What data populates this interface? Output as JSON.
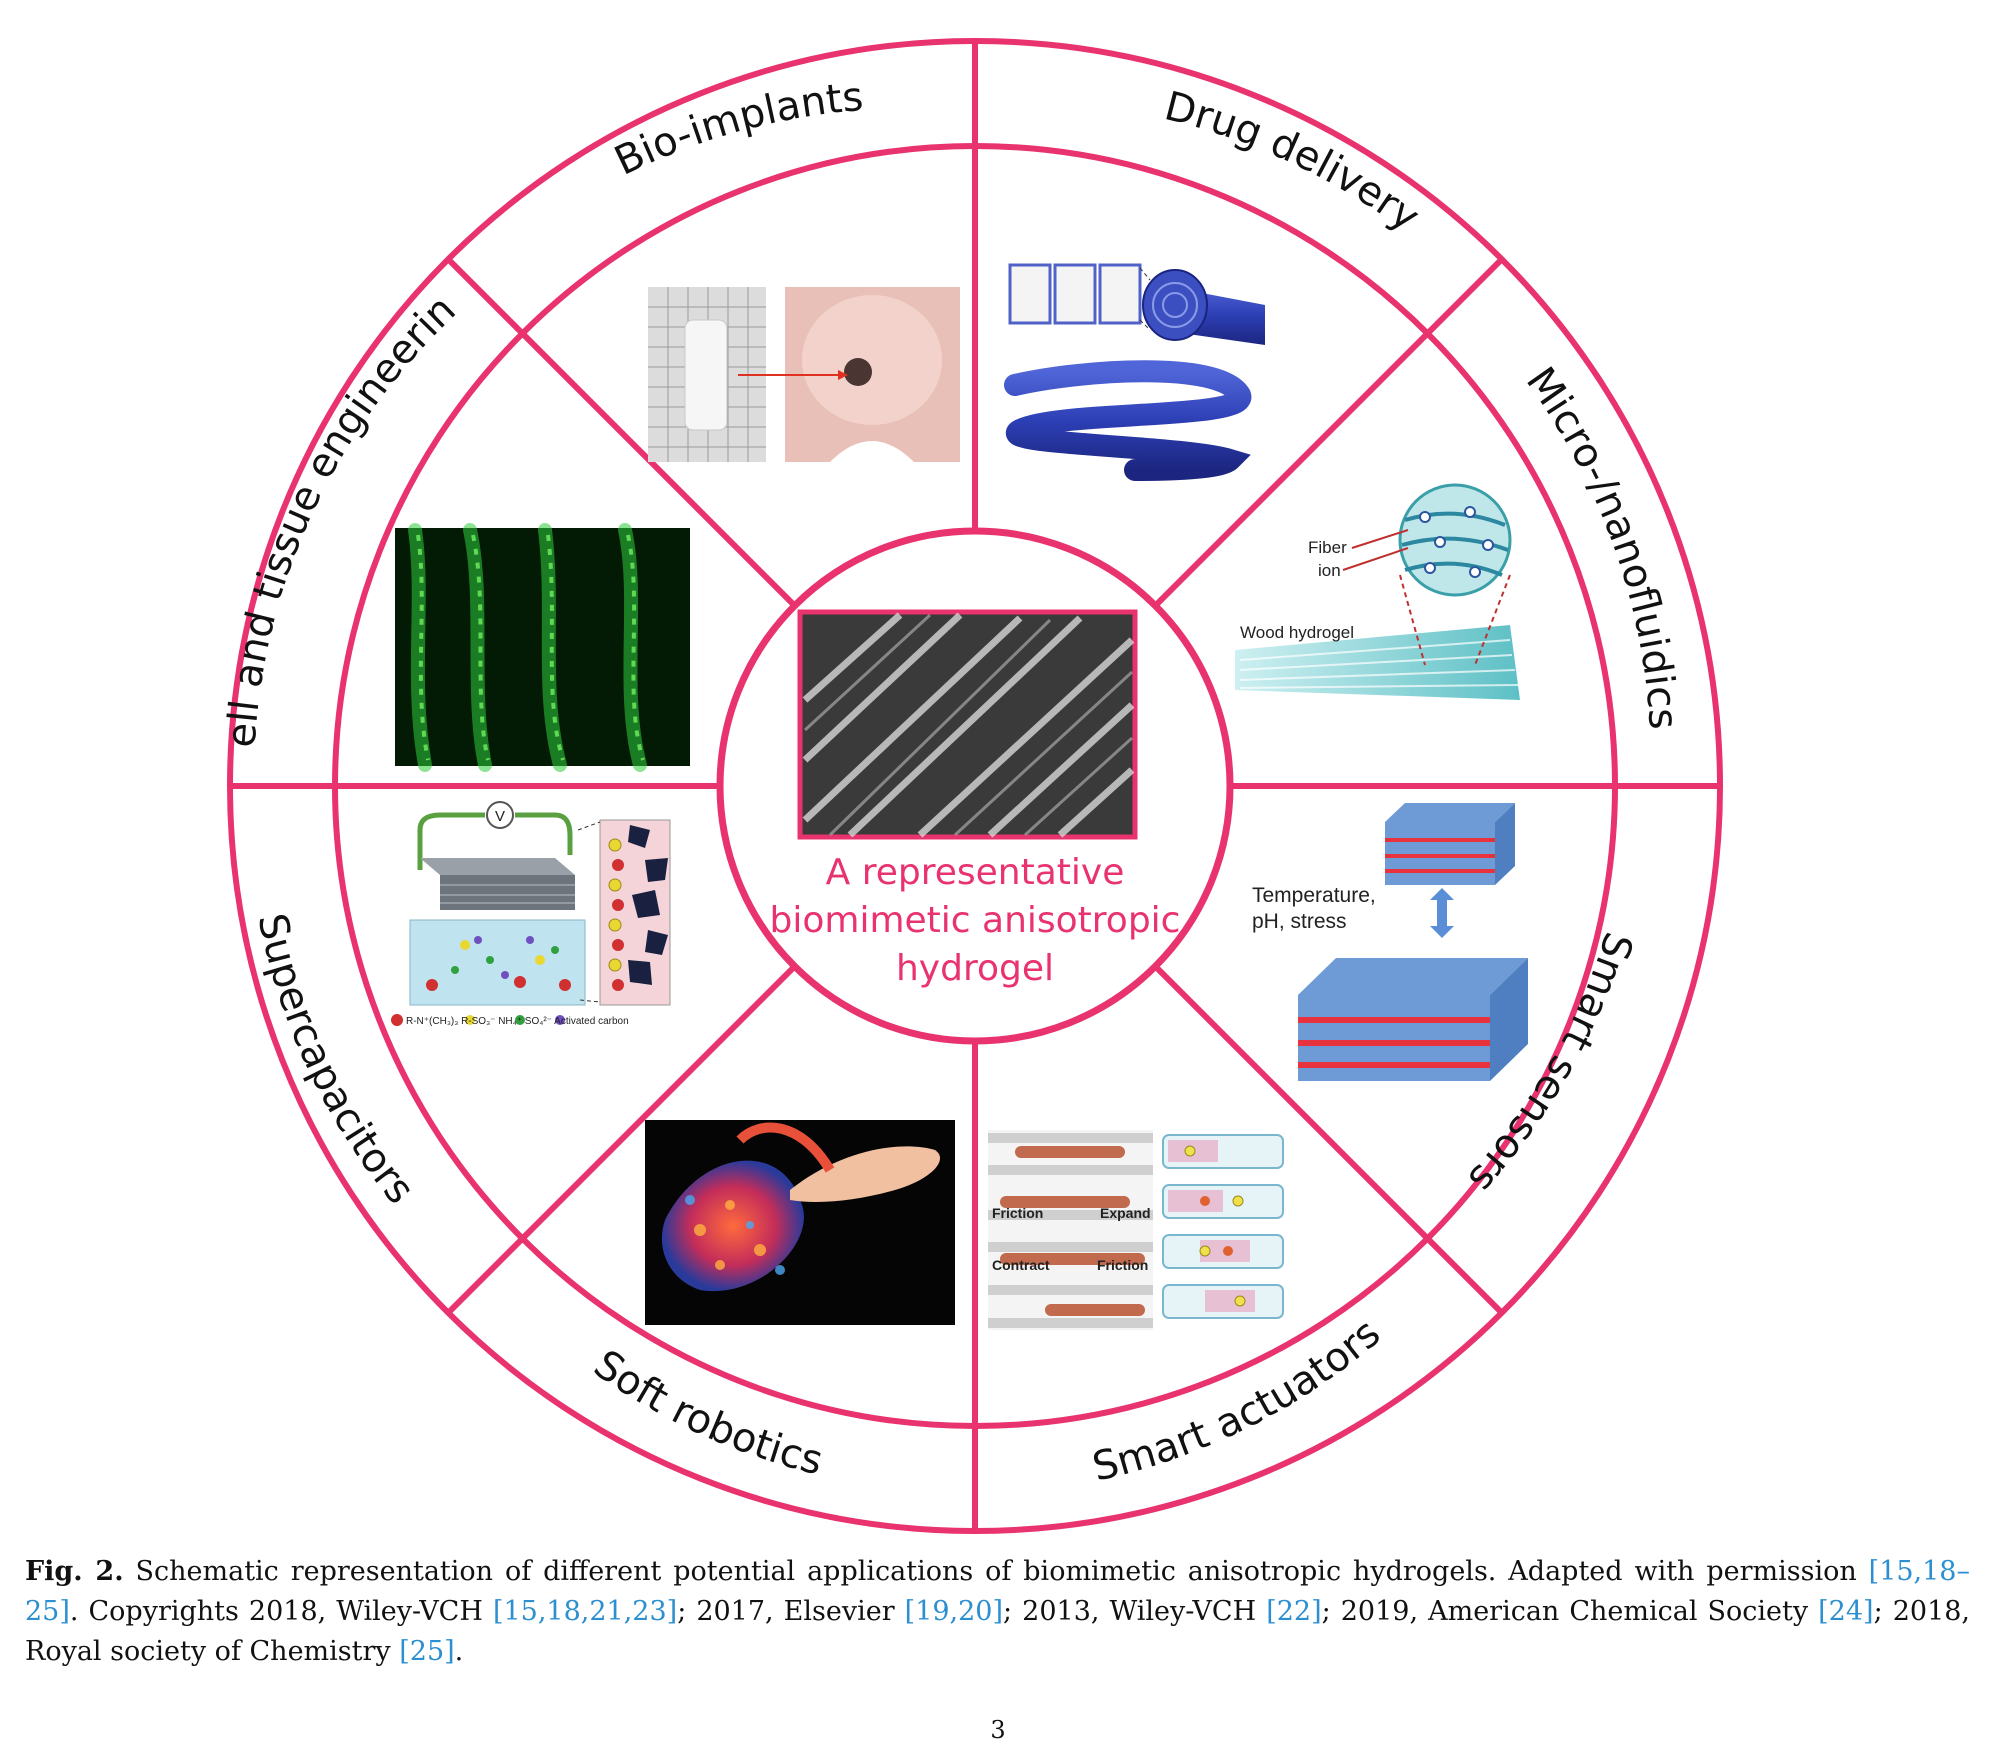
{
  "figure": {
    "accent_color": "#e8336e",
    "segments": {
      "bio_implants": "Bio-implants",
      "drug_delivery": "Drug delivery",
      "micro_nanofluidics": "Micro-/nanofluidics",
      "smart_sensors": "Smart sensors",
      "smart_actuators": "Smart actuators",
      "soft_robotics": "Soft robotics",
      "supercapacitors": "Supercapacitors",
      "cell_tissue": "Cell and tissue engineering"
    },
    "center": {
      "line1": "A representative",
      "line2": "biomimetic anisotropic",
      "line3": "hydrogel"
    },
    "micro_labels": {
      "fiber": "Fiber",
      "ion": "ion",
      "wood": "Wood hydrogel"
    },
    "sensor_labels": {
      "line1": "Temperature,",
      "line2": "pH, stress"
    },
    "actuator_labels": {
      "friction1": "Friction",
      "expand": "Expand",
      "contract": "Contract",
      "friction2": "Friction"
    },
    "supercap_labels": {
      "v": "V",
      "legend": "R-N⁺(CH₃)₃   R-SO₃⁻   NH₄⁺   SO₄²⁻   Activated carbon"
    }
  },
  "caption": {
    "label": "Fig. 2.",
    "t1": " Schematic representation of different potential applications of biomimetic anisotropic hydrogels. Adapted with permission ",
    "r1": "[15,18–25]",
    "t2": ". Copyrights 2018, Wiley-VCH ",
    "r2": "[15,18,21,23]",
    "t3": "; 2017, Elsevier ",
    "r3": "[19,20]",
    "t4": "; 2013, Wiley-VCH ",
    "r4": "[22]",
    "t5": "; 2019, American Chemical Society ",
    "r5": "[24]",
    "t6": "; 2018, Royal society of Chemistry ",
    "r6": "[25]",
    "t7": "."
  },
  "page_number": "3"
}
